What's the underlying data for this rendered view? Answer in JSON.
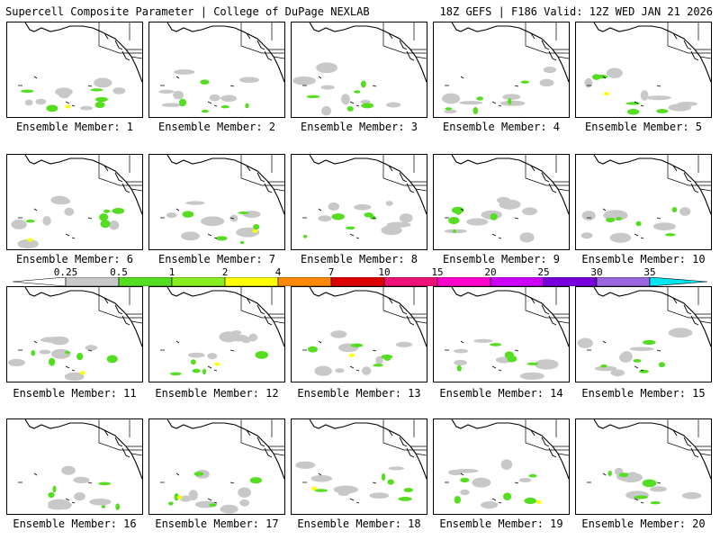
{
  "header": {
    "left": "Supercell Composite Parameter | College of DuPage NEXLAB",
    "right": "18Z GEFS | F186 Valid: 12Z WED JAN 21 2026"
  },
  "label_prefix": "Ensemble Member:",
  "members": [
    "1",
    "2",
    "3",
    "4",
    "5",
    "6",
    "7",
    "8",
    "9",
    "10",
    "11",
    "12",
    "13",
    "14",
    "15",
    "16",
    "17",
    "18",
    "19",
    "20"
  ],
  "colorbar": {
    "ticks": [
      "0.25",
      "0.5",
      "1",
      "2",
      "4",
      "7",
      "10",
      "15",
      "20",
      "25",
      "30",
      "35"
    ],
    "colors": [
      "#c8c8c8",
      "#55dd22",
      "#88ee22",
      "#ffff00",
      "#ff8800",
      "#dd0000",
      "#ee1177",
      "#ff00cc",
      "#cc00ff",
      "#7700dd",
      "#9966dd",
      "#00e5ee"
    ],
    "low_end": "#ffffff",
    "high_end": "#00e5ee"
  }
}
